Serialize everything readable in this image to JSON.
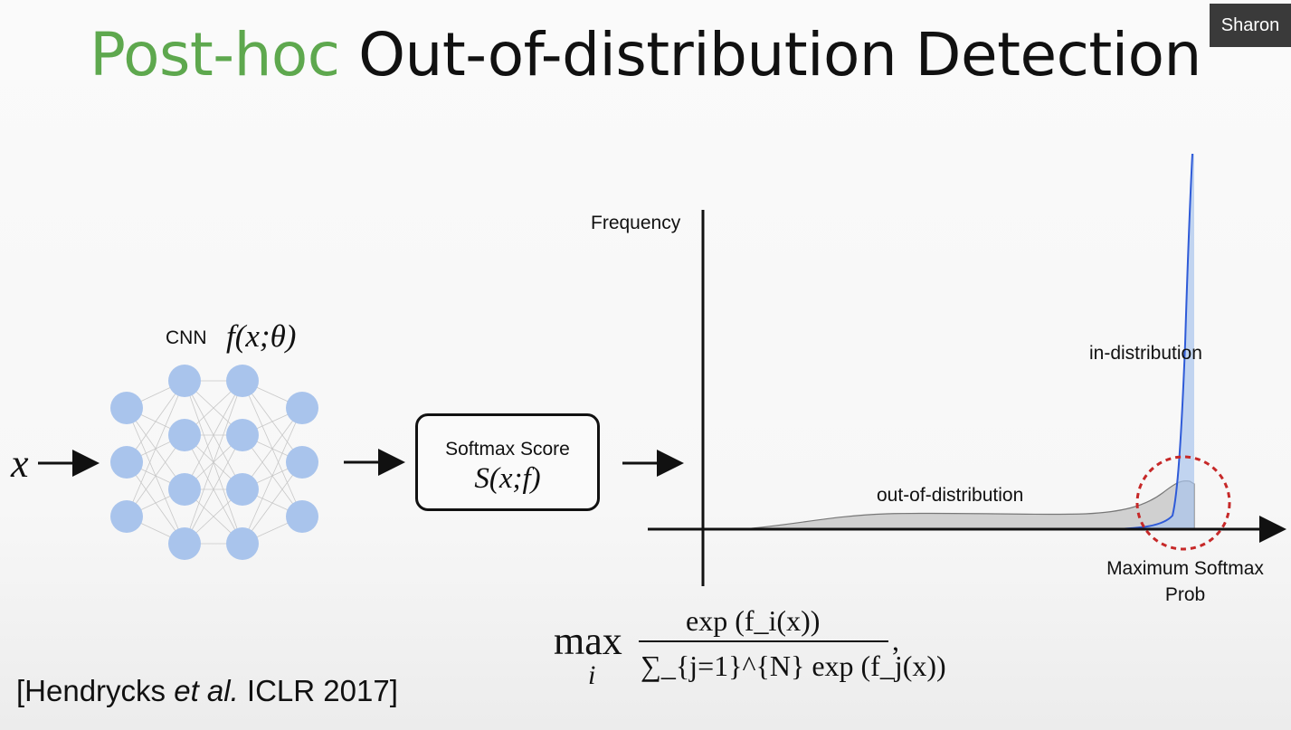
{
  "title": {
    "highlight": "Post-hoc",
    "rest": "Out-of-distribution Detection"
  },
  "presenter_badge": "Sharon",
  "network": {
    "input_symbol": "x",
    "cnn_label": "CNN",
    "func_label": "f(x;θ)"
  },
  "softmax_box": {
    "label": "Softmax Score",
    "expr": "S(x;f)"
  },
  "plot": {
    "y_axis_label": "Frequency",
    "in_dist_label": "in-distribution",
    "ood_label": "out-of-distribution",
    "msp_label_line1": "Maximum Softmax",
    "msp_label_line2": "Prob"
  },
  "formula": {
    "operator": "max",
    "index": "i",
    "numerator": "exp (f_i(x))",
    "denominator": "∑_{j=1}^{N} exp (f_j(x))"
  },
  "citation": {
    "prefix": "[Hendrycks ",
    "italic": "et al.",
    "suffix": " ICLR 2017]"
  },
  "colors": {
    "accent_green": "#5ea84e",
    "neuron_blue": "#a9c4ec",
    "in_dist_blue": "#2f5bd8",
    "circle_red": "#c62828"
  }
}
